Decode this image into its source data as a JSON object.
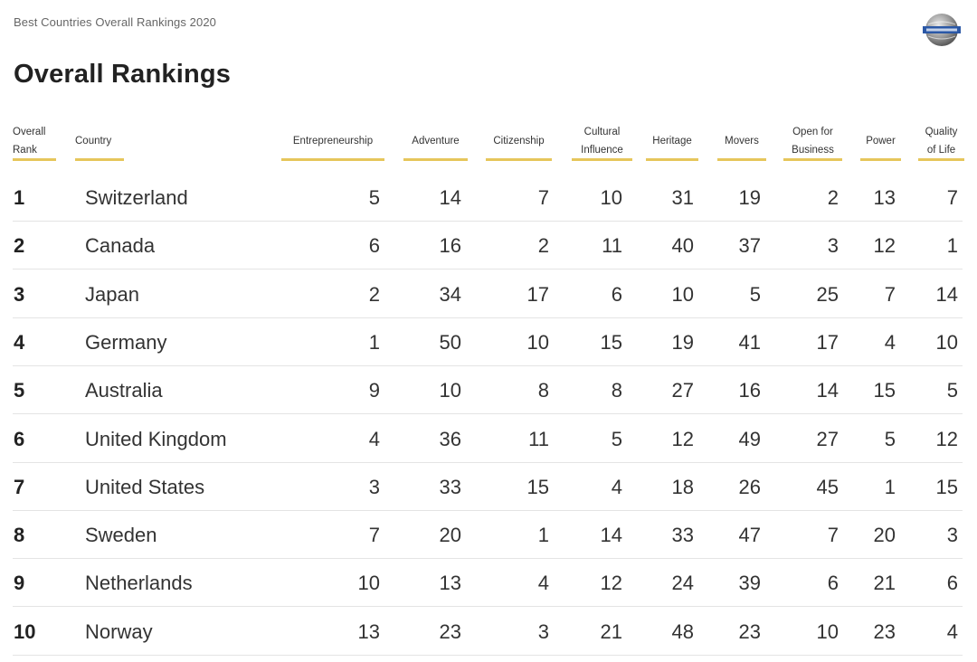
{
  "header": {
    "supertitle": "Best Countries Overall Rankings 2020",
    "title": "Overall Rankings"
  },
  "colors": {
    "accent_underline": "#e6c65b",
    "row_divider": "#e4e4e4",
    "text": "#333333"
  },
  "table": {
    "columns": [
      {
        "key": "rank",
        "label_lines": [
          "Overall",
          "Rank"
        ]
      },
      {
        "key": "country",
        "label_lines": [
          "Country"
        ]
      },
      {
        "key": "entrepreneurship",
        "label_lines": [
          "Entrepreneurship"
        ]
      },
      {
        "key": "adventure",
        "label_lines": [
          "Adventure"
        ]
      },
      {
        "key": "citizenship",
        "label_lines": [
          "Citizenship"
        ]
      },
      {
        "key": "cultural_influence",
        "label_lines": [
          "Cultural",
          "Influence"
        ]
      },
      {
        "key": "heritage",
        "label_lines": [
          "Heritage"
        ]
      },
      {
        "key": "movers",
        "label_lines": [
          "Movers"
        ]
      },
      {
        "key": "open_for_business",
        "label_lines": [
          "Open for",
          "Business"
        ]
      },
      {
        "key": "power",
        "label_lines": [
          "Power"
        ]
      },
      {
        "key": "quality_of_life",
        "label_lines": [
          "Quality",
          "of Life"
        ]
      }
    ],
    "rows": [
      {
        "rank": "1",
        "country": "Switzerland",
        "values": [
          "5",
          "14",
          "7",
          "10",
          "31",
          "19",
          "2",
          "13",
          "7"
        ]
      },
      {
        "rank": "2",
        "country": "Canada",
        "values": [
          "6",
          "16",
          "2",
          "11",
          "40",
          "37",
          "3",
          "12",
          "1"
        ]
      },
      {
        "rank": "3",
        "country": "Japan",
        "values": [
          "2",
          "34",
          "17",
          "6",
          "10",
          "5",
          "25",
          "7",
          "14"
        ]
      },
      {
        "rank": "4",
        "country": "Germany",
        "values": [
          "1",
          "50",
          "10",
          "15",
          "19",
          "41",
          "17",
          "4",
          "10"
        ]
      },
      {
        "rank": "5",
        "country": "Australia",
        "values": [
          "9",
          "10",
          "8",
          "8",
          "27",
          "16",
          "14",
          "15",
          "5"
        ]
      },
      {
        "rank": "6",
        "country": "United Kingdom",
        "values": [
          "4",
          "36",
          "11",
          "5",
          "12",
          "49",
          "27",
          "5",
          "12"
        ]
      },
      {
        "rank": "7",
        "country": "United States",
        "values": [
          "3",
          "33",
          "15",
          "4",
          "18",
          "26",
          "45",
          "1",
          "15"
        ]
      },
      {
        "rank": "8",
        "country": "Sweden",
        "values": [
          "7",
          "20",
          "1",
          "14",
          "33",
          "47",
          "7",
          "20",
          "3"
        ]
      },
      {
        "rank": "9",
        "country": "Netherlands",
        "values": [
          "10",
          "13",
          "4",
          "12",
          "24",
          "39",
          "6",
          "21",
          "6"
        ]
      },
      {
        "rank": "10",
        "country": "Norway",
        "values": [
          "13",
          "23",
          "3",
          "21",
          "48",
          "23",
          "10",
          "23",
          "4"
        ]
      }
    ]
  }
}
